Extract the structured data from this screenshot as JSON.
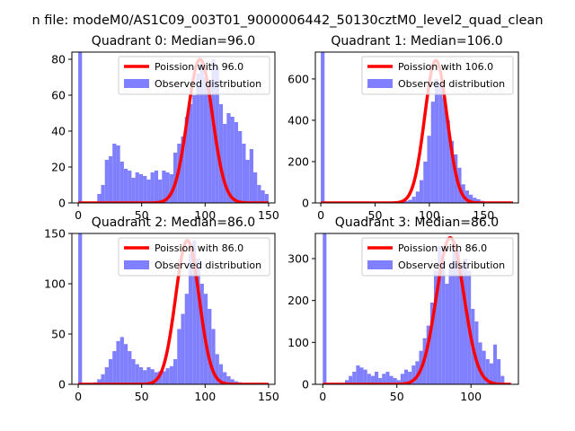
{
  "figure": {
    "suptitle": "n file: modeM0/AS1C09_003T01_9000006442_50130cztM0_level2_quad_clean"
  },
  "colors": {
    "observed": "#8080ff",
    "poisson": "#ff0000",
    "axes": "#000000"
  },
  "chart_data": [
    {
      "type": "bar",
      "title": "Quadrant 0: Median=96.0",
      "legend": [
        "Poission with 96.0",
        "Observed distribution"
      ],
      "legend_position": "upper-right",
      "xlim": [
        -5,
        155
      ],
      "ylim": [
        0,
        84
      ],
      "xticks": [
        0,
        50,
        100,
        150
      ],
      "yticks": [
        0,
        20,
        40,
        60,
        80
      ],
      "bin_width": 3,
      "hist_x": [
        0,
        15,
        18,
        21,
        24,
        27,
        30,
        33,
        36,
        39,
        42,
        45,
        48,
        51,
        54,
        57,
        60,
        63,
        66,
        69,
        72,
        75,
        78,
        81,
        84,
        87,
        90,
        93,
        96,
        99,
        102,
        105,
        108,
        111,
        114,
        117,
        120,
        123,
        126,
        129,
        132,
        135,
        138,
        141,
        144,
        147
      ],
      "hist_y": [
        84,
        5,
        10,
        24,
        26,
        33,
        32,
        23,
        19,
        18,
        14,
        17,
        16,
        15,
        13,
        17,
        18,
        13,
        18,
        17,
        16,
        28,
        33,
        37,
        48,
        55,
        60,
        72,
        78,
        70,
        68,
        80,
        76,
        55,
        44,
        50,
        48,
        45,
        40,
        33,
        24,
        30,
        17,
        10,
        7,
        5
      ],
      "poisson_mean": 96.0,
      "poisson_peak": 80
    },
    {
      "type": "bar",
      "title": "Quadrant 1: Median=106.0",
      "legend": [
        "Poission with 106.0",
        "Observed distribution"
      ],
      "legend_position": "upper-right",
      "xlim": [
        -5,
        182
      ],
      "ylim": [
        0,
        730
      ],
      "xticks": [
        0,
        50,
        100,
        150
      ],
      "yticks": [
        0,
        200,
        400,
        600
      ],
      "bin_width": 3.5,
      "hist_x": [
        0,
        70,
        73.5,
        77,
        80.5,
        84,
        87.5,
        91,
        94.5,
        98,
        101.5,
        105,
        108.5,
        112,
        115.5,
        119,
        122.5,
        126,
        129.5,
        133,
        136.5,
        140,
        143.5,
        147,
        150.5,
        154,
        157.5,
        161
      ],
      "hist_y": [
        730,
        3,
        5,
        10,
        15,
        30,
        55,
        110,
        200,
        325,
        490,
        600,
        580,
        510,
        400,
        300,
        235,
        170,
        90,
        60,
        40,
        25,
        18,
        10,
        6,
        4,
        3,
        2
      ],
      "poisson_mean": 106.0,
      "poisson_peak": 690
    },
    {
      "type": "bar",
      "title": "Quadrant 2: Median=86.0",
      "legend": [
        "Poission with 86.0",
        "Observed distribution"
      ],
      "legend_position": "upper-right",
      "xlim": [
        -5,
        155
      ],
      "ylim": [
        0,
        150
      ],
      "xticks": [
        0,
        50,
        100,
        150
      ],
      "yticks": [
        0,
        50,
        100,
        150
      ],
      "bin_width": 3,
      "hist_x": [
        0,
        12,
        15,
        18,
        21,
        24,
        27,
        30,
        33,
        36,
        39,
        42,
        45,
        48,
        51,
        54,
        57,
        60,
        63,
        66,
        69,
        72,
        75,
        78,
        81,
        84,
        87,
        90,
        93,
        96,
        99,
        102,
        105,
        108,
        111,
        114,
        117,
        120,
        123,
        126,
        129,
        132,
        135
      ],
      "hist_y": [
        150,
        2,
        5,
        10,
        17,
        25,
        33,
        43,
        47,
        40,
        33,
        25,
        20,
        17,
        14,
        17,
        15,
        12,
        13,
        13,
        16,
        18,
        25,
        55,
        70,
        90,
        130,
        143,
        125,
        100,
        90,
        75,
        55,
        30,
        20,
        12,
        8,
        5,
        3,
        2,
        1,
        1,
        1
      ],
      "poisson_mean": 86.0,
      "poisson_peak": 143
    },
    {
      "type": "bar",
      "title": "Quadrant 3: Median=86.0",
      "legend": [
        "Poission with 86.0",
        "Observed distribution"
      ],
      "legend_position": "upper-right",
      "xlim": [
        -5,
        132
      ],
      "ylim": [
        0,
        360
      ],
      "xticks": [
        0,
        50,
        100
      ],
      "yticks": [
        0,
        100,
        200,
        300
      ],
      "bin_width": 2.5,
      "hist_x": [
        0,
        15,
        17.5,
        20,
        22.5,
        25,
        27.5,
        30,
        32.5,
        35,
        37.5,
        40,
        42.5,
        45,
        47.5,
        50,
        52.5,
        55,
        57.5,
        60,
        62.5,
        65,
        67.5,
        70,
        72.5,
        75,
        77.5,
        80,
        82.5,
        85,
        87.5,
        90,
        92.5,
        95,
        97.5,
        100,
        102.5,
        105,
        107.5,
        110,
        112.5,
        115,
        117.5,
        120
      ],
      "hist_y": [
        360,
        10,
        20,
        30,
        45,
        40,
        35,
        25,
        20,
        30,
        15,
        25,
        30,
        20,
        15,
        10,
        25,
        35,
        30,
        45,
        55,
        80,
        110,
        140,
        195,
        270,
        330,
        300,
        240,
        290,
        340,
        320,
        285,
        300,
        270,
        180,
        150,
        100,
        80,
        60,
        50,
        95,
        60,
        20
      ],
      "poisson_mean": 86.0,
      "poisson_peak": 350
    }
  ]
}
